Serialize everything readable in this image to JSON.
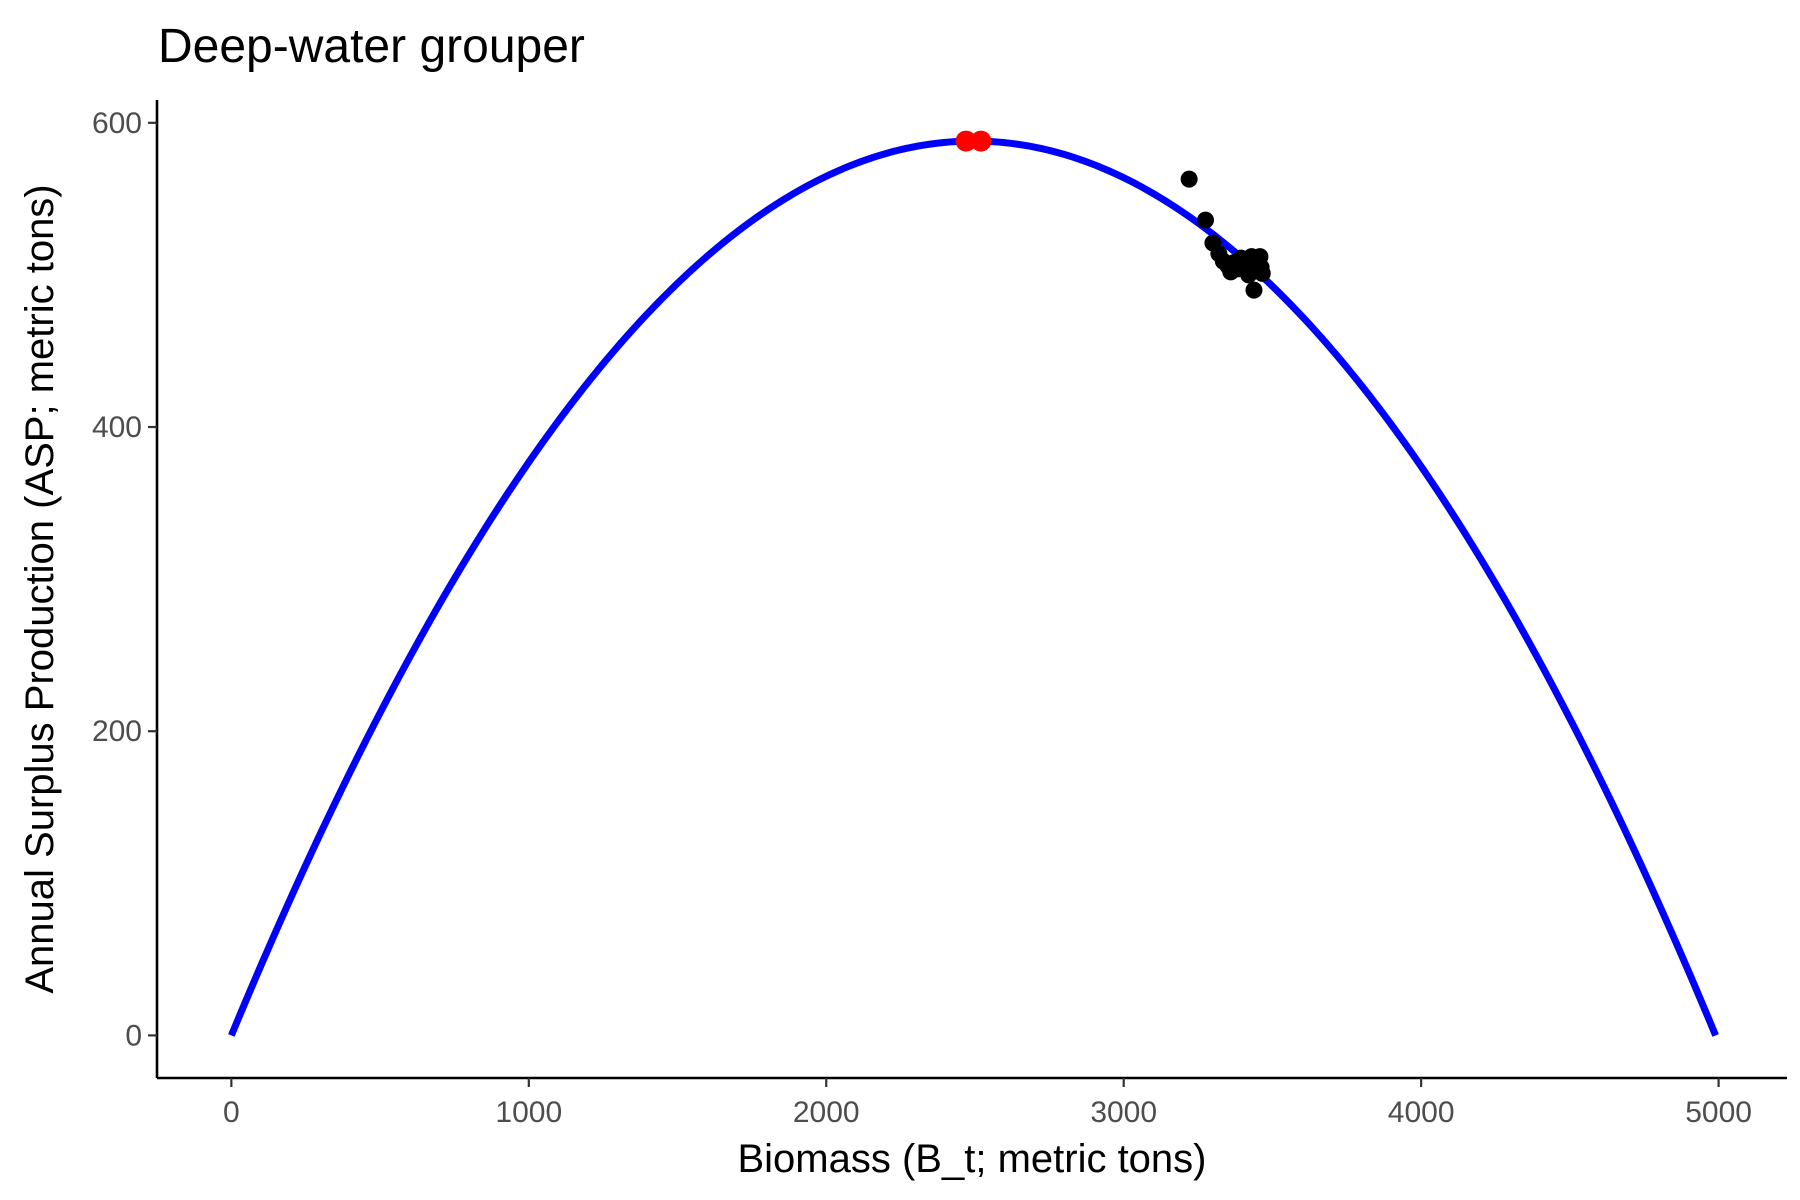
{
  "chart_data": {
    "type": "scatter",
    "title": "Deep-water grouper",
    "xlabel": "Biomass (B_t; metric tons)",
    "ylabel": "Annual Surplus Production (ASP; metric tons)",
    "xlim": [
      -250,
      5230
    ],
    "ylim": [
      -28,
      615
    ],
    "xticks": [
      0,
      1000,
      2000,
      3000,
      4000,
      5000
    ],
    "yticks": [
      0,
      200,
      400,
      600
    ],
    "grid": false,
    "legend": "none",
    "curve": {
      "kind": "surplus-production parabola",
      "color": "#0000ff",
      "carrying_capacity": 4990,
      "msy": 588,
      "bmsy": 2495
    },
    "msy_points": {
      "color": "#ff0000",
      "points": [
        {
          "x": 2470,
          "y": 588
        },
        {
          "x": 2520,
          "y": 588
        }
      ]
    },
    "observations": {
      "color": "#000000",
      "points": [
        {
          "x": 3220,
          "y": 563
        },
        {
          "x": 3275,
          "y": 536
        },
        {
          "x": 3300,
          "y": 521
        },
        {
          "x": 3320,
          "y": 514
        },
        {
          "x": 3335,
          "y": 509
        },
        {
          "x": 3350,
          "y": 506
        },
        {
          "x": 3360,
          "y": 502
        },
        {
          "x": 3370,
          "y": 508
        },
        {
          "x": 3385,
          "y": 504
        },
        {
          "x": 3395,
          "y": 511
        },
        {
          "x": 3410,
          "y": 507
        },
        {
          "x": 3420,
          "y": 500
        },
        {
          "x": 3430,
          "y": 512
        },
        {
          "x": 3438,
          "y": 490
        },
        {
          "x": 3445,
          "y": 503
        },
        {
          "x": 3452,
          "y": 509
        },
        {
          "x": 3458,
          "y": 512
        },
        {
          "x": 3462,
          "y": 505
        },
        {
          "x": 3466,
          "y": 501
        }
      ]
    }
  }
}
